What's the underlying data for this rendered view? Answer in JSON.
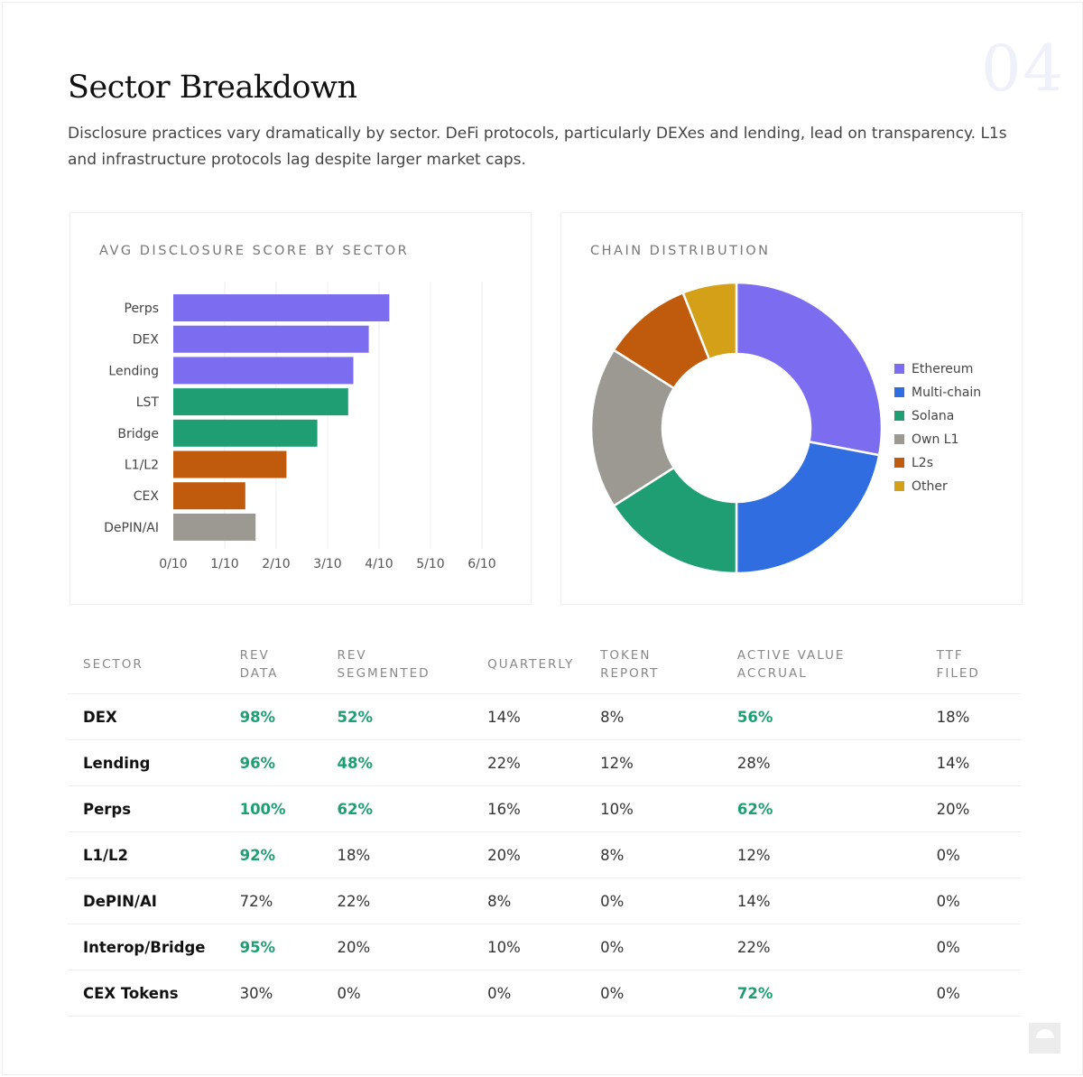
{
  "page_number": "04",
  "title": "Sector Breakdown",
  "subtitle": "Disclosure practices vary dramatically by sector. DeFi protocols, particularly DEXes and lending, lead on transparency. L1s and infrastructure protocols lag despite larger market caps.",
  "chart_data": [
    {
      "type": "bar",
      "orientation": "horizontal",
      "title": "AVG DISCLOSURE SCORE BY SECTOR",
      "categories": [
        "Perps",
        "DEX",
        "Lending",
        "LST",
        "Bridge",
        "L1/L2",
        "CEX",
        "DePIN/AI"
      ],
      "values": [
        4.2,
        3.8,
        3.5,
        3.4,
        2.8,
        2.2,
        1.4,
        1.6
      ],
      "colors": [
        "#7b6cf0",
        "#7b6cf0",
        "#7b6cf0",
        "#1f9e74",
        "#1f9e74",
        "#c05a0c",
        "#c05a0c",
        "#9c9892"
      ],
      "xlim": [
        0,
        6
      ],
      "xticks": [
        "0/10",
        "1/10",
        "2/10",
        "3/10",
        "4/10",
        "5/10",
        "6/10"
      ],
      "grid": true
    },
    {
      "type": "pie",
      "donut": true,
      "title": "CHAIN DISTRIBUTION",
      "labels": [
        "Ethereum",
        "Multi-chain",
        "Solana",
        "Own L1",
        "L2s",
        "Other"
      ],
      "values": [
        28,
        22,
        16,
        18,
        10,
        6
      ],
      "colors": [
        "#7b6cf0",
        "#2f6de0",
        "#1f9e74",
        "#9c9892",
        "#c05a0c",
        "#d4a017"
      ],
      "legend": "right"
    }
  ],
  "table": {
    "headers": [
      [
        "SECTOR"
      ],
      [
        "REV",
        "DATA"
      ],
      [
        "REV",
        "SEGMENTED"
      ],
      [
        "QUARTERLY"
      ],
      [
        "TOKEN",
        "REPORT"
      ],
      [
        "ACTIVE VALUE",
        "ACCRUAL"
      ],
      [
        "TTF",
        "FILED"
      ]
    ],
    "rows": [
      {
        "cells": [
          "DEX",
          "98%",
          "52%",
          "14%",
          "8%",
          "56%",
          "18%"
        ],
        "hi": [
          1,
          2,
          5
        ]
      },
      {
        "cells": [
          "Lending",
          "96%",
          "48%",
          "22%",
          "12%",
          "28%",
          "14%"
        ],
        "hi": [
          1,
          2
        ]
      },
      {
        "cells": [
          "Perps",
          "100%",
          "62%",
          "16%",
          "10%",
          "62%",
          "20%"
        ],
        "hi": [
          1,
          2,
          5
        ]
      },
      {
        "cells": [
          "L1/L2",
          "92%",
          "18%",
          "20%",
          "8%",
          "12%",
          "0%"
        ],
        "hi": [
          1
        ]
      },
      {
        "cells": [
          "DePIN/AI",
          "72%",
          "22%",
          "8%",
          "0%",
          "14%",
          "0%"
        ],
        "hi": []
      },
      {
        "cells": [
          "Interop/Bridge",
          "95%",
          "20%",
          "10%",
          "0%",
          "22%",
          "0%"
        ],
        "hi": [
          1
        ]
      },
      {
        "cells": [
          "CEX Tokens",
          "30%",
          "0%",
          "0%",
          "0%",
          "72%",
          "0%"
        ],
        "hi": [
          5
        ]
      }
    ],
    "highlight_color": "#1f9e74"
  }
}
